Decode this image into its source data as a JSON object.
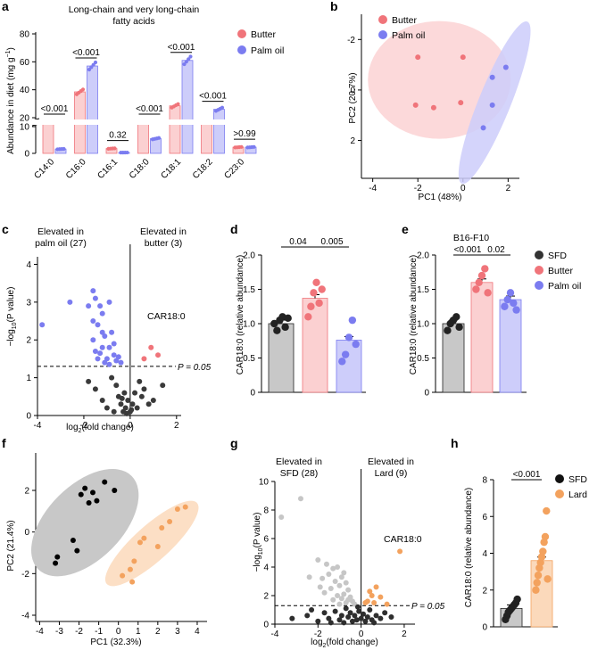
{
  "colors": {
    "butter": "#f0747a",
    "butter_fill": "#fbd0d1",
    "palm": "#7b7cf0",
    "palm_fill": "#cdcdfa",
    "sfd": "#222222",
    "sfd_fill": "#c8c8c8",
    "lard": "#f3a25e",
    "lard_fill": "#fbd9bb",
    "grey": "#bbbbbb"
  },
  "panels": {
    "a": {
      "letter": "a",
      "title_lines": [
        "Long-chain and very long-chain",
        "fatty acids"
      ],
      "legend": [
        "Butter",
        "Palm oil"
      ],
      "chart_data": {
        "type": "bar",
        "ylabel": "Abundance in diet (mg g",
        "ylabel_sup": "−1",
        "ylabel_end": ")",
        "ylim": [
          0,
          80
        ],
        "yticks": [
          0,
          10,
          20,
          40,
          60,
          80
        ],
        "categories": [
          "C14:0",
          "C16:0",
          "C16:1",
          "C18:0",
          "C18:1",
          "C18:2",
          "C23:0"
        ],
        "series": [
          {
            "name": "Butter",
            "values": [
              12,
              38.5,
              1.8,
              14.5,
              28.5,
              11.5,
              2.3
            ]
          },
          {
            "name": "Palm oil",
            "values": [
              1.6,
              57,
              0.3,
              5.5,
              61,
              26,
              2.3
            ]
          }
        ],
        "pvalues": [
          "<0.001",
          "<0.001",
          "0.32",
          "<0.001",
          "<0.001",
          "<0.001",
          ">0.99"
        ]
      }
    },
    "b": {
      "letter": "b",
      "legend": [
        "Butter",
        "Palm oil"
      ],
      "chart_data": {
        "type": "scatter",
        "xlabel": "PC1 (48%)",
        "ylabel": "PC2 (20.7%)",
        "xlim": [
          -4.5,
          2.5
        ],
        "ylim": [
          -3,
          3.5
        ],
        "xticks": [
          -4,
          -2,
          0,
          2
        ],
        "yticks": [
          -2,
          0,
          2
        ],
        "series": [
          {
            "name": "Butter",
            "points": [
              [
                -2,
                -1.3
              ],
              [
                0,
                -1.3
              ],
              [
                -2.1,
                0.6
              ],
              [
                -1.3,
                0.7
              ],
              [
                -0.1,
                0.5
              ]
            ]
          },
          {
            "name": "Palm oil",
            "points": [
              [
                1.9,
                -0.9
              ],
              [
                1.3,
                -0.5
              ],
              [
                1.3,
                0.6
              ],
              [
                0.9,
                1.5
              ]
            ]
          }
        ]
      }
    },
    "c": {
      "letter": "c",
      "left_label_lines": [
        "Elevated in",
        "palm oil (27)"
      ],
      "right_label_lines": [
        "Elevated in",
        "butter (3)"
      ],
      "annotation": "CAR18:0",
      "threshold_label": "P = 0.05",
      "chart_data": {
        "type": "scatter",
        "xlabel": "log",
        "xlabel_sub": "2",
        "xlabel_end": "(fold change)",
        "ylabel": "−log",
        "ylabel_sub": "10",
        "ylabel_end": "(P value)",
        "xlim": [
          -4,
          2.2
        ],
        "ylim": [
          0,
          4.2
        ],
        "xticks": [
          -4,
          -2,
          0,
          2
        ],
        "yticks": [
          0,
          1,
          2,
          3,
          4
        ],
        "threshold": 1.3,
        "series": [
          {
            "name": "palm",
            "points": [
              [
                -3.8,
                2.4
              ],
              [
                -2.6,
                3
              ],
              [
                -1.6,
                3.3
              ],
              [
                -1.5,
                3.1
              ],
              [
                -1.3,
                2.9
              ],
              [
                -0.9,
                3
              ],
              [
                -1.8,
                2.9
              ],
              [
                -1.2,
                2.7
              ],
              [
                -1.6,
                2.5
              ],
              [
                -1.4,
                2.4
              ],
              [
                -0.8,
                2.2
              ],
              [
                -1.1,
                2.1
              ],
              [
                -1.6,
                2.0
              ],
              [
                -0.7,
                1.9
              ],
              [
                -1.2,
                1.8
              ],
              [
                -0.9,
                1.8
              ],
              [
                -1.5,
                1.7
              ],
              [
                -1.3,
                1.65
              ],
              [
                -0.7,
                1.6
              ],
              [
                -0.5,
                1.55
              ],
              [
                -1.0,
                1.5
              ],
              [
                -1.4,
                1.5
              ],
              [
                -0.6,
                1.45
              ],
              [
                -1.1,
                1.4
              ],
              [
                -0.4,
                1.4
              ],
              [
                -0.9,
                1.35
              ],
              [
                -1.2,
                2.2
              ]
            ]
          },
          {
            "name": "butter",
            "points": [
              [
                0.9,
                1.8
              ],
              [
                1.2,
                1.6
              ],
              [
                0.6,
                1.5
              ]
            ]
          },
          {
            "name": "ns",
            "points": [
              [
                -1.8,
                0.9
              ],
              [
                -1.5,
                0.7
              ],
              [
                -1.2,
                0.4
              ],
              [
                -1.0,
                0.2
              ],
              [
                -0.8,
                1.0
              ],
              [
                -0.6,
                0.8
              ],
              [
                -0.5,
                0.5
              ],
              [
                -0.4,
                0.3
              ],
              [
                -0.3,
                0.1
              ],
              [
                -0.25,
                0.6
              ],
              [
                -0.2,
                0.2
              ],
              [
                -0.15,
                0.05
              ],
              [
                -0.1,
                0.4
              ],
              [
                0,
                0.1
              ],
              [
                0.1,
                0.3
              ],
              [
                0.2,
                0.6
              ],
              [
                0.3,
                0.2
              ],
              [
                0.4,
                0.9
              ],
              [
                0.5,
                0.5
              ],
              [
                0.6,
                0.7
              ],
              [
                0.8,
                0.3
              ],
              [
                1.0,
                0.4
              ],
              [
                1.4,
                0.8
              ],
              [
                -0.7,
                0.1
              ],
              [
                0.05,
                0.15
              ],
              [
                -0.35,
                0.45
              ]
            ]
          }
        ]
      }
    },
    "d": {
      "letter": "d",
      "pvalues": [
        "0.04",
        "0.005"
      ],
      "chart_data": {
        "type": "bar",
        "ylabel": "CAR18:0 (relative abundance)",
        "ylim": [
          0,
          2
        ],
        "yticks": [
          "0",
          "0.5",
          "1.0",
          "1.5",
          "2.0"
        ],
        "categories": [
          "SFD",
          "Butter",
          "Palm oil"
        ],
        "values": [
          1.0,
          1.37,
          0.76
        ],
        "points": [
          [
            1.0,
            0.9,
            1.05,
            1.1,
            0.95,
            1.08
          ],
          [
            1.1,
            1.25,
            1.45,
            1.6,
            1.3,
            1.5
          ],
          [
            0.45,
            0.55,
            0.8,
            1.05,
            0.7
          ]
        ]
      }
    },
    "e": {
      "letter": "e",
      "subtitle": "B16-F10",
      "pvalues": [
        "<0.001",
        "0.02"
      ],
      "legend": [
        "SFD",
        "Butter",
        "Palm oil"
      ],
      "chart_data": {
        "type": "bar",
        "ylabel": "CAR18:0 (relative abundance)",
        "ylim": [
          0,
          2
        ],
        "yticks": [
          "0",
          "0.5",
          "1.0",
          "1.5",
          "2.0"
        ],
        "categories": [
          "SFD",
          "Butter",
          "Palm oil"
        ],
        "values": [
          1.0,
          1.6,
          1.35
        ],
        "points": [
          [
            0.9,
            1.0,
            1.05,
            1.1,
            0.95
          ],
          [
            1.5,
            1.6,
            1.7,
            1.8,
            1.45
          ],
          [
            1.25,
            1.35,
            1.45,
            1.3,
            1.2
          ]
        ]
      }
    },
    "f": {
      "letter": "f",
      "chart_data": {
        "type": "scatter",
        "xlabel": "PC1 (32.3%)",
        "ylabel": "PC2 (21.4%)",
        "xlim": [
          -4.2,
          4.5
        ],
        "ylim": [
          -4.3,
          3.8
        ],
        "xticks": [
          -4,
          -3,
          -2,
          -1,
          0,
          1,
          2,
          3,
          4
        ],
        "yticks": [
          -4,
          -2,
          0,
          2
        ],
        "series": [
          {
            "name": "SFD",
            "points": [
              [
                -3.1,
                -1.2
              ],
              [
                -3.2,
                -1.5
              ],
              [
                -2.3,
                -0.4
              ],
              [
                -2.1,
                -0.9
              ],
              [
                -1.9,
                1.8
              ],
              [
                -1.7,
                2.1
              ],
              [
                -1.5,
                1.4
              ],
              [
                -1.3,
                1.9
              ],
              [
                -1.1,
                1.5
              ],
              [
                -0.7,
                2.4
              ],
              [
                -0.2,
                2.0
              ]
            ]
          },
          {
            "name": "Lard",
            "points": [
              [
                0.2,
                -2.1
              ],
              [
                0.6,
                -1.8
              ],
              [
                0.8,
                -1.4
              ],
              [
                0.7,
                -2.4
              ],
              [
                1.1,
                -0.5
              ],
              [
                1.3,
                -0.3
              ],
              [
                2.0,
                -0.7
              ],
              [
                2.2,
                0.2
              ],
              [
                2.6,
                0.5
              ],
              [
                3.0,
                1.1
              ],
              [
                3.4,
                1.2
              ]
            ]
          }
        ]
      }
    },
    "g": {
      "letter": "g",
      "left_label_lines": [
        "Elevated in",
        "SFD (28)"
      ],
      "right_label_lines": [
        "Elevated in",
        "Lard (9)"
      ],
      "annotation": "CAR18:0",
      "threshold_label": "P = 0.05",
      "chart_data": {
        "type": "scatter",
        "xlabel": "log",
        "xlabel_sub": "2",
        "xlabel_end": "(fold change)",
        "ylabel": "−log",
        "ylabel_sub": "10",
        "ylabel_end": "(P value)",
        "xlim": [
          -4,
          2.5
        ],
        "ylim": [
          0,
          10
        ],
        "xticks": [
          -4,
          -2,
          0,
          2
        ],
        "yticks": [
          0,
          2,
          4,
          6,
          8,
          10
        ],
        "threshold": 1.3,
        "series": [
          {
            "name": "sfd",
            "points": [
              [
                -3.7,
                7.5
              ],
              [
                -2.8,
                8.8
              ],
              [
                -2.0,
                4.5
              ],
              [
                -1.6,
                4.2
              ],
              [
                -1.3,
                3.9
              ],
              [
                -1.1,
                4.0
              ],
              [
                -1.5,
                3.5
              ],
              [
                -0.9,
                3.3
              ],
              [
                -1.8,
                3.2
              ],
              [
                -1.2,
                3.0
              ],
              [
                -0.7,
                2.9
              ],
              [
                -1.0,
                2.7
              ],
              [
                -1.4,
                2.5
              ],
              [
                -0.6,
                2.4
              ],
              [
                -1.7,
                2.2
              ],
              [
                -0.8,
                2.1
              ],
              [
                -1.1,
                2.0
              ],
              [
                -0.5,
                1.9
              ],
              [
                -0.9,
                1.8
              ],
              [
                -1.3,
                1.7
              ],
              [
                -0.4,
                1.6
              ],
              [
                -0.7,
                1.5
              ],
              [
                -1.0,
                1.4
              ],
              [
                -0.3,
                1.4
              ],
              [
                -2.4,
                3.3
              ],
              [
                -0.6,
                1.7
              ],
              [
                -0.8,
                3.6
              ],
              [
                -1.9,
                2.6
              ]
            ]
          },
          {
            "name": "lard",
            "points": [
              [
                1.8,
                5.1
              ],
              [
                0.5,
                2.0
              ],
              [
                0.9,
                1.9
              ],
              [
                0.3,
                1.6
              ],
              [
                0.6,
                1.5
              ],
              [
                0.4,
                2.3
              ],
              [
                1.2,
                1.4
              ],
              [
                0.2,
                1.5
              ],
              [
                0.7,
                2.6
              ]
            ]
          },
          {
            "name": "ns",
            "points": [
              [
                -3.2,
                0.4
              ],
              [
                -2.5,
                0.6
              ],
              [
                -2.0,
                0.2
              ],
              [
                -1.7,
                0.8
              ],
              [
                -1.5,
                0.4
              ],
              [
                -1.2,
                0.9
              ],
              [
                -1.0,
                0.3
              ],
              [
                -0.9,
                0.6
              ],
              [
                -0.8,
                0.1
              ],
              [
                -0.7,
                1.1
              ],
              [
                -0.6,
                0.5
              ],
              [
                -0.5,
                0.8
              ],
              [
                -0.4,
                0.2
              ],
              [
                -0.3,
                0.6
              ],
              [
                -0.2,
                0.3
              ],
              [
                -0.1,
                0.9
              ],
              [
                0,
                0.4
              ],
              [
                0.1,
                0.7
              ],
              [
                0.2,
                0.2
              ],
              [
                0.3,
                0.5
              ],
              [
                0.4,
                1.0
              ],
              [
                0.5,
                0.3
              ],
              [
                0.7,
                0.6
              ],
              [
                0.9,
                0.4
              ],
              [
                1.1,
                0.8
              ],
              [
                -1.4,
                0.1
              ],
              [
                -0.15,
                1.2
              ],
              [
                0.6,
                0.1
              ],
              [
                -2.3,
                1.0
              ],
              [
                1.4,
                0.5
              ]
            ]
          }
        ]
      }
    },
    "h": {
      "letter": "h",
      "pvalue": "<0.001",
      "legend": [
        "SFD",
        "Lard"
      ],
      "chart_data": {
        "type": "bar",
        "ylabel": "CAR18:0 (relative abundance)",
        "ylim": [
          0,
          8
        ],
        "yticks": [
          0,
          2,
          4,
          6,
          8
        ],
        "categories": [
          "SFD",
          "Lard"
        ],
        "values": [
          1.0,
          3.6
        ],
        "points": [
          [
            0.4,
            0.6,
            0.8,
            0.9,
            1.0,
            1.1,
            1.2,
            1.3,
            1.5
          ],
          [
            2.0,
            2.4,
            2.8,
            3.2,
            3.5,
            3.8,
            4.1,
            4.6,
            4.9,
            6.3,
            2.6
          ]
        ]
      }
    }
  }
}
